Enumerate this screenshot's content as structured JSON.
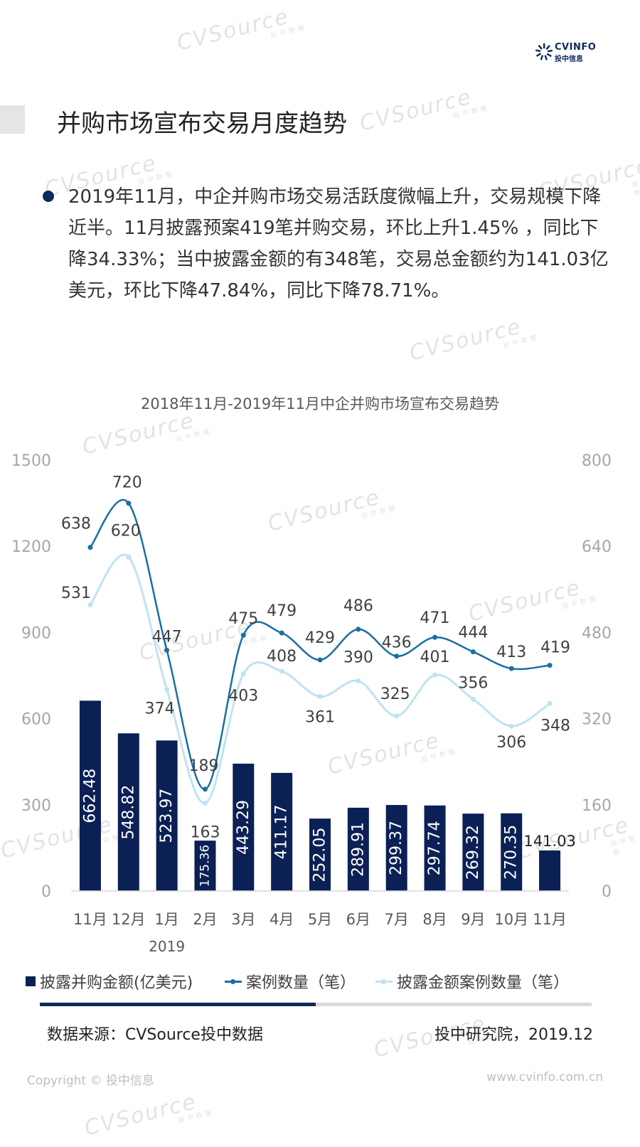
{
  "header": {
    "logo_en": "CVINFO",
    "logo_cn": "投中信息",
    "title": "并购市场宣布交易月度趋势"
  },
  "summary": "2019年11月，中企并购市场交易活跃度微幅上升，交易规模下降近半。11月披露预案419笔并购交易，环比上升1.45% ，同比下降34.33%；当中披露金额的有348笔，交易总金额约为141.03亿美元，环比下降47.84%，同比下降78.71%。",
  "watermark": {
    "text": "CVSource",
    "sub": "投中数据"
  },
  "chart_data": {
    "type": "bar+line",
    "title": "2018年11月-2019年11月中企并购市场宣布交易趋势",
    "categories": [
      "11月",
      "12月",
      "1月",
      "2月",
      "3月",
      "4月",
      "5月",
      "6月",
      "7月",
      "8月",
      "9月",
      "10月",
      "11月"
    ],
    "category_note": {
      "index": 2,
      "text": "2019"
    },
    "left_axis": {
      "min": 0,
      "max": 1500,
      "ticks": [
        "0",
        "300",
        "600",
        "900",
        "1200",
        "1500"
      ]
    },
    "right_axis": {
      "min": 0,
      "max": 800,
      "ticks": [
        "0",
        "160",
        "320",
        "480",
        "640",
        "800"
      ]
    },
    "grid": false,
    "legend_position": "bottom",
    "series": [
      {
        "name": "披露并购金额(亿美元)",
        "type": "bar",
        "axis": "left",
        "color": "#0b2055",
        "values": [
          662.48,
          548.82,
          523.97,
          175.36,
          443.29,
          411.17,
          252.05,
          289.91,
          299.37,
          297.74,
          269.32,
          270.35,
          141.03
        ],
        "labels": [
          "662.48",
          "548.82",
          "523.97",
          "175.36",
          "443.29",
          "411.17",
          "252.05",
          "289.91",
          "299.37",
          "297.74",
          "269.32",
          "270.35",
          "141.03"
        ]
      },
      {
        "name": "案例数量（笔）",
        "type": "line",
        "axis": "right",
        "color": "#1a6fa3",
        "values": [
          638,
          720,
          447,
          189,
          475,
          479,
          429,
          486,
          436,
          471,
          444,
          413,
          419
        ],
        "labels": [
          "638",
          "720",
          "447",
          "189",
          "475",
          "479",
          "429",
          "486",
          "436",
          "471",
          "444",
          "413",
          "419"
        ]
      },
      {
        "name": "披露金额案例数量（笔）",
        "type": "line",
        "axis": "right",
        "color": "#bfe3f2",
        "values": [
          531,
          620,
          374,
          163,
          403,
          408,
          361,
          390,
          325,
          401,
          356,
          306,
          348
        ],
        "labels": [
          "531",
          "620",
          "374",
          "163",
          "403",
          "408",
          "361",
          "390",
          "325",
          "401",
          "356",
          "306",
          "348"
        ]
      }
    ]
  },
  "footer": {
    "progress": 0.5,
    "source": "数据来源：CVSource投中数据",
    "publisher": "投中研究院，2019.12",
    "copyright": "Copyright © 投中信息",
    "website": "www.cvinfo.com.cn"
  }
}
